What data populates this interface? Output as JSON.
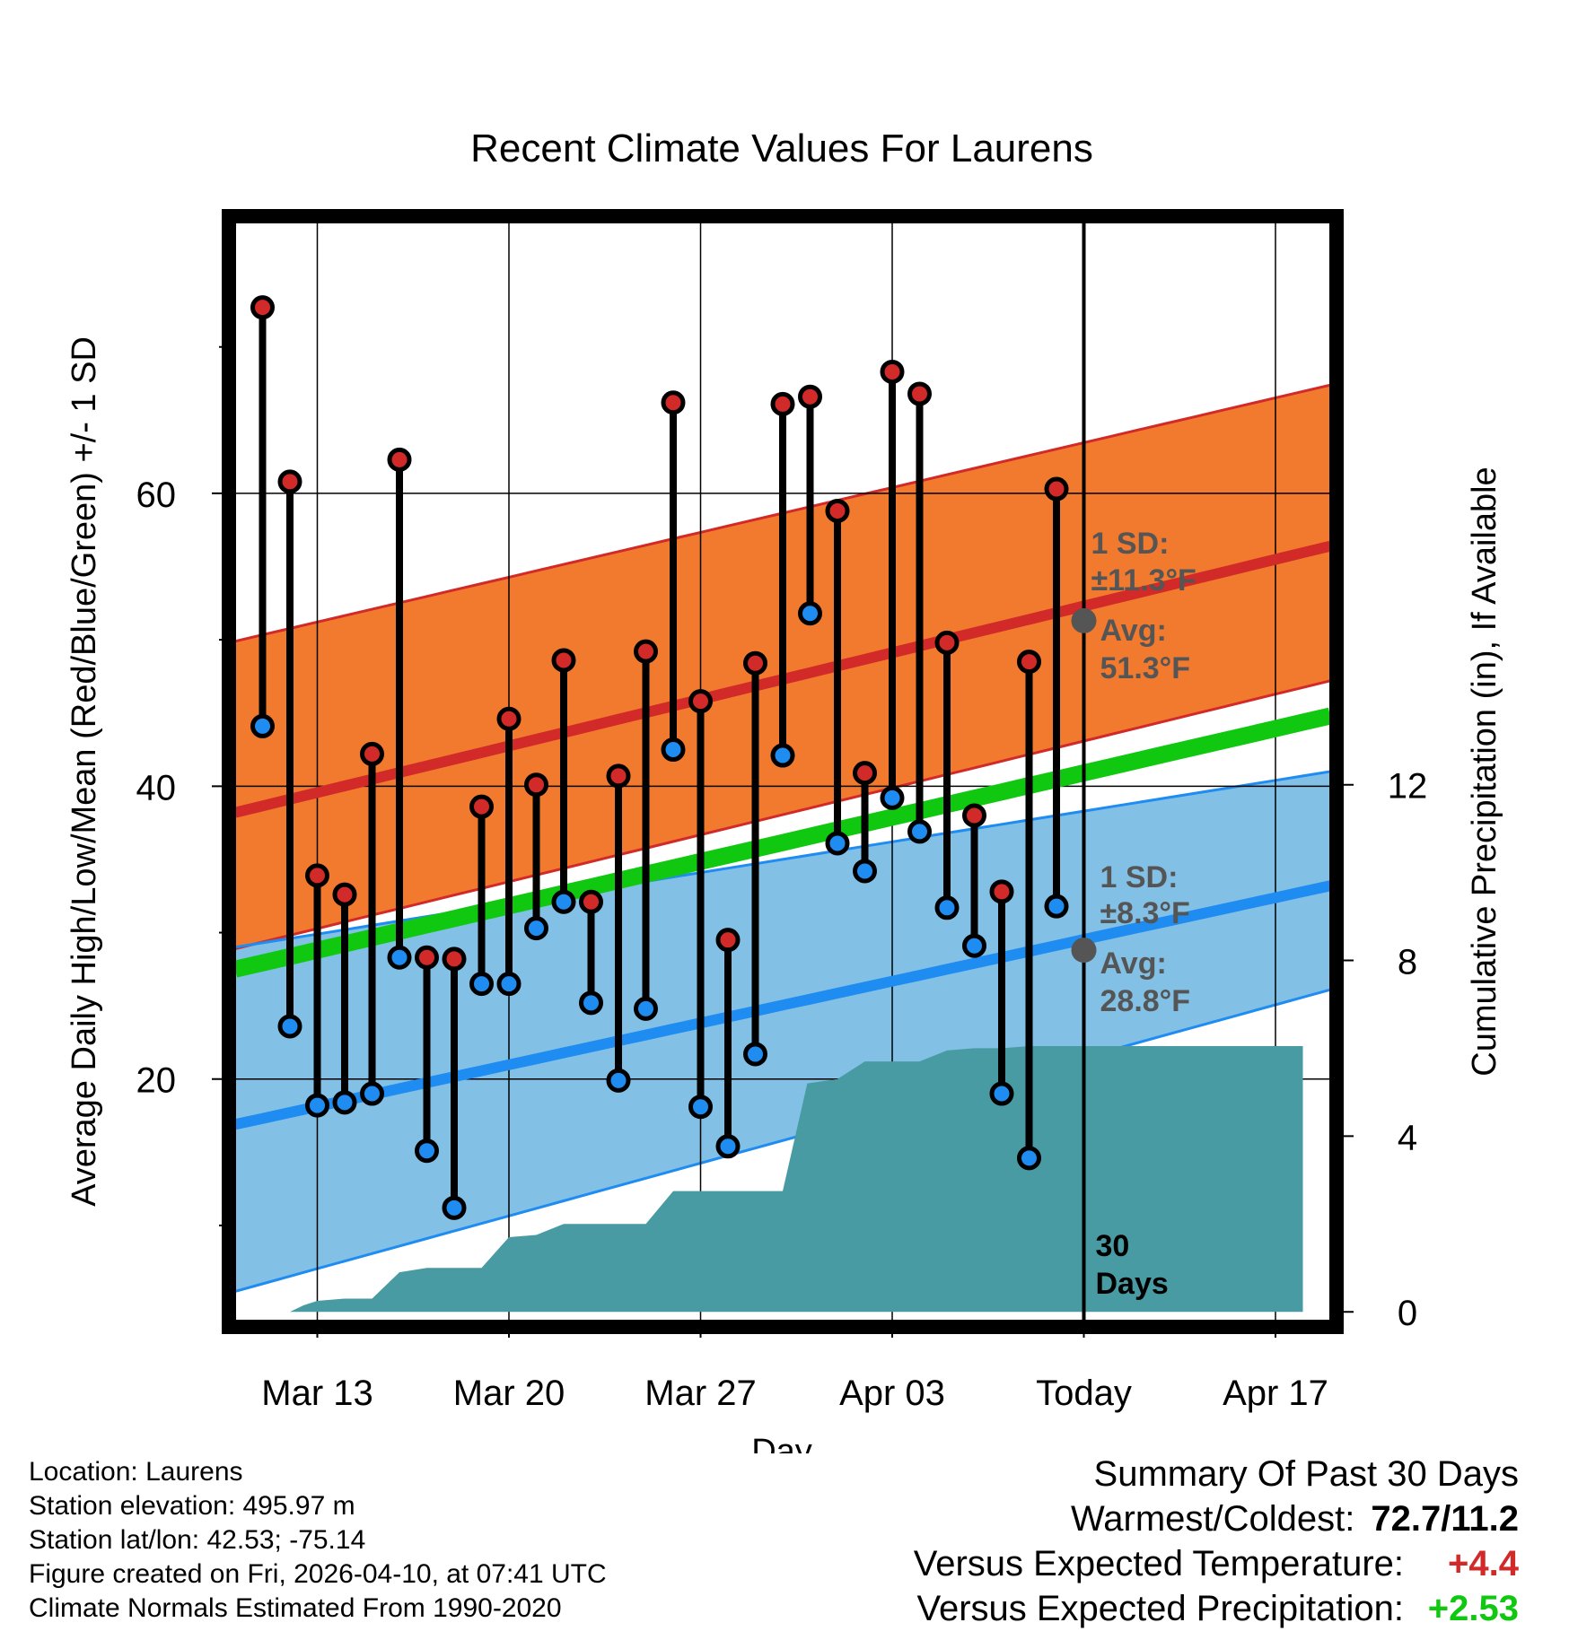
{
  "chart_data": {
    "type": "line",
    "title": "Recent Climate Values For Laurens",
    "xlabel": "Day",
    "ylabel_left": "Average Daily High/Low/Mean (Red/Blue/Green) +/- 1 SD",
    "ylabel_right": "Cumulative Precipitation (in), If Available",
    "y_left_range": [
      3.5,
      78.5
    ],
    "y_left_ticks": [
      "20",
      "40",
      "60"
    ],
    "y_right_range": [
      -0.2,
      24.8
    ],
    "y_right_ticks": [
      "0",
      "4",
      "8",
      "12"
    ],
    "x_range": [
      -1,
      39
    ],
    "x_ticks": [
      {
        "day": 2,
        "label": "Mar 13"
      },
      {
        "day": 9,
        "label": "Mar 20"
      },
      {
        "day": 16,
        "label": "Mar 27"
      },
      {
        "day": 23,
        "label": "Apr 03"
      },
      {
        "day": 30,
        "label": "Today"
      },
      {
        "day": 37,
        "label": "Apr 17"
      }
    ],
    "today_day": 30,
    "days": [
      0,
      1,
      2,
      3,
      4,
      5,
      6,
      7,
      8,
      9,
      10,
      11,
      12,
      13,
      14,
      15,
      16,
      17,
      18,
      19,
      20,
      21,
      22,
      23,
      24,
      25,
      26,
      27,
      28,
      29
    ],
    "highs": [
      72.7,
      60.8,
      33.9,
      32.6,
      42.2,
      62.3,
      28.3,
      28.2,
      38.6,
      44.6,
      40.1,
      48.6,
      32.1,
      40.7,
      49.2,
      66.2,
      45.8,
      29.5,
      48.4,
      66.1,
      66.6,
      58.8,
      40.9,
      68.3,
      66.8,
      49.8,
      38.0,
      32.8,
      48.5,
      60.3
    ],
    "lows": [
      44.1,
      23.6,
      18.2,
      18.4,
      19.0,
      28.3,
      15.1,
      11.2,
      26.5,
      26.5,
      30.3,
      32.1,
      25.2,
      19.9,
      24.8,
      42.5,
      18.1,
      15.4,
      21.7,
      42.1,
      51.8,
      36.1,
      34.2,
      39.2,
      36.9,
      31.7,
      29.1,
      19.0,
      14.6,
      31.8
    ],
    "normals": {
      "high_avg": [
        38.2,
        56.4
      ],
      "high_sd_upper": [
        49.9,
        67.4
      ],
      "high_sd_lower": [
        28.9,
        47.2
      ],
      "low_avg": [
        16.9,
        33.2
      ],
      "low_sd_upper": [
        29.0,
        41.0
      ],
      "low_sd_lower": [
        5.5,
        26.1
      ],
      "mean_avg": [
        27.5,
        44.8
      ]
    },
    "precip_cumulative": [
      [
        0,
        0
      ],
      [
        1,
        0
      ],
      [
        1.5,
        0.15
      ],
      [
        2,
        0.25
      ],
      [
        3,
        0.3
      ],
      [
        4,
        0.3
      ],
      [
        5,
        0.9
      ],
      [
        6,
        1
      ],
      [
        7,
        1
      ],
      [
        8,
        1
      ],
      [
        9,
        1.7
      ],
      [
        10,
        1.75
      ],
      [
        11,
        2
      ],
      [
        12,
        2
      ],
      [
        13,
        2
      ],
      [
        14,
        2
      ],
      [
        15,
        2.75
      ],
      [
        16,
        2.75
      ],
      [
        17,
        2.75
      ],
      [
        18,
        2.75
      ],
      [
        19,
        2.75
      ],
      [
        19.9,
        5.2
      ],
      [
        21,
        5.3
      ],
      [
        22,
        5.7
      ],
      [
        23,
        5.7
      ],
      [
        24,
        5.7
      ],
      [
        25,
        5.95
      ],
      [
        26,
        6
      ],
      [
        27,
        6
      ],
      [
        28,
        6.05
      ],
      [
        29,
        6.05
      ],
      [
        38,
        6.05
      ]
    ],
    "annotations": {
      "high_sd": [
        "1 SD:",
        "±11.3°F"
      ],
      "high_avg": [
        "Avg:",
        "51.3°F"
      ],
      "low_sd": [
        "1 SD:",
        "±8.3°F"
      ],
      "low_avg": [
        "Avg:",
        "28.8°F"
      ],
      "today_high_avg": 51.3,
      "today_low_avg": 28.8,
      "days_label": [
        "30",
        "Days"
      ]
    },
    "colors": {
      "high_band": "#f27a2e",
      "high_line": "#d12a28",
      "low_band": "#82c0e6",
      "low_line": "#1e8cf0",
      "mean_line": "#11c811",
      "precip": "#489ba3",
      "high_dot": "#d12a28",
      "low_dot": "#1e8cf0",
      "warm_text": "#d12a28",
      "wet_text": "#11c811",
      "annot_text": "#555555",
      "marker": "#555555"
    }
  },
  "footer": {
    "location": "Location: Laurens",
    "elevation": "Station elevation: 495.97 m",
    "latlon": "Station lat/lon: 42.53; -75.14",
    "created": "Figure created on Fri, 2026-04-10, at 07:41 UTC",
    "normals": "Climate Normals Estimated From 1990-2020"
  },
  "summary": {
    "title": "Summary Of Past 30 Days",
    "warm_cold_label": "Warmest/Coldest:",
    "warm_cold_value": "72.7/11.2",
    "temp_label": "Versus Expected Temperature:",
    "temp_value": "+4.4",
    "precip_label": "Versus Expected Precipitation:",
    "precip_value": "+2.53"
  }
}
